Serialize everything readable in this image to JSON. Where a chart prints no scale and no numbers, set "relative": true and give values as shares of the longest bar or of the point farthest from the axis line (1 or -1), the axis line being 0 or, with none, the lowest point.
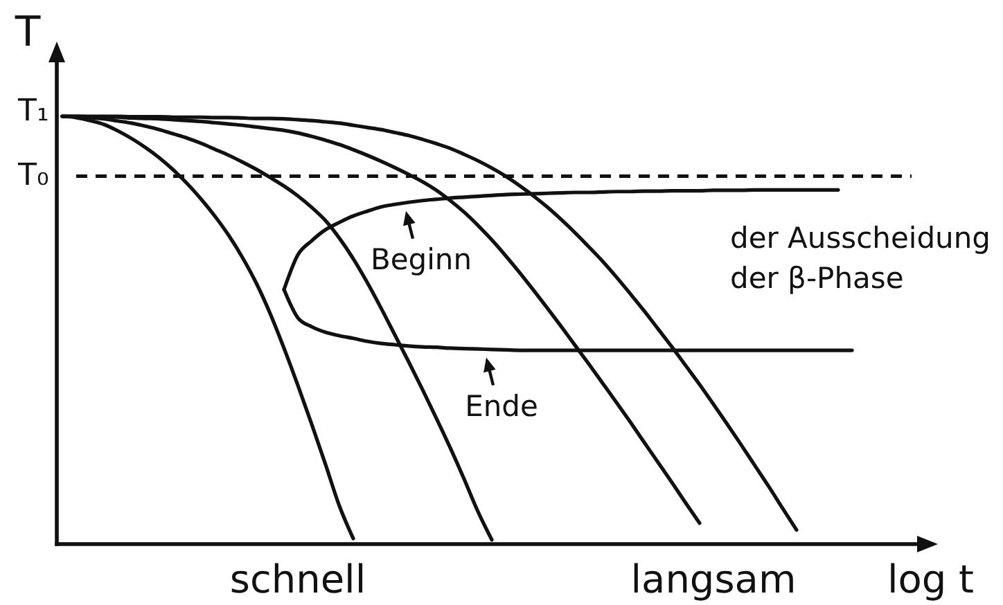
{
  "chart_data": {
    "type": "line",
    "relative": true,
    "xlabel": "log t",
    "ylabel": "T",
    "legend": "center",
    "categories": [
      null,
      null,
      null,
      null,
      null,
      null,
      null,
      null,
      null,
      null,
      null,
      null,
      null,
      null,
      null,
      null,
      null,
      "schnell",
      null,
      null,
      null,
      null,
      null,
      null,
      null,
      null,
      null,
      null,
      null,
      null,
      null,
      null,
      null,
      null,
      null,
      null,
      null,
      null,
      null,
      null,
      null,
      null,
      null,
      null,
      null,
      null,
      null,
      "langsam",
      null,
      null,
      null,
      null,
      null,
      null,
      null,
      null,
      null,
      null,
      null,
      null,
      null,
      null,
      null,
      null
    ],
    "series": [
      {
        "color": "#111111",
        "values": [
          1,
          0.997,
          0.99,
          0.981,
          0.966,
          0.948,
          0.927,
          0.903,
          0.875,
          0.843,
          0.807,
          0.767,
          0.722,
          0.67,
          0.61,
          0.539,
          0.458,
          0.371,
          0.28,
          0.186,
          0.089,
          0.013,
          null,
          null,
          null,
          null,
          null,
          null,
          null,
          null,
          null,
          null,
          null,
          null,
          null,
          null,
          null,
          null,
          null,
          null,
          null,
          null,
          null,
          null,
          null,
          null,
          null,
          null,
          null,
          null,
          null,
          null,
          null,
          null,
          null,
          null,
          null,
          null,
          null,
          null,
          null,
          null,
          null,
          null
        ]
      },
      {
        "color": "#111111",
        "values": [
          1,
          0.999,
          0.997,
          0.994,
          0.989,
          0.984,
          0.977,
          0.969,
          0.959,
          0.949,
          0.937,
          0.923,
          0.909,
          0.893,
          0.876,
          0.857,
          0.837,
          0.814,
          0.787,
          0.756,
          0.715,
          0.667,
          0.612,
          0.552,
          0.489,
          0.426,
          0.361,
          0.294,
          0.225,
          0.152,
          0.076,
          0.01,
          null,
          null,
          null,
          null,
          null,
          null,
          null,
          null,
          null,
          null,
          null,
          null,
          null,
          null,
          null,
          null,
          null,
          null,
          null,
          null,
          null,
          null,
          null,
          null,
          null,
          null,
          null,
          null,
          null,
          null,
          null,
          null
        ]
      },
      {
        "color": "#111111",
        "values": [
          1,
          1,
          0.999,
          0.999,
          0.998,
          0.996,
          0.995,
          0.994,
          0.992,
          0.99,
          0.988,
          0.985,
          0.982,
          0.979,
          0.975,
          0.971,
          0.967,
          0.961,
          0.953,
          0.944,
          0.934,
          0.922,
          0.909,
          0.895,
          0.88,
          0.864,
          0.847,
          0.827,
          0.803,
          0.776,
          0.745,
          0.711,
          0.674,
          0.635,
          0.594,
          0.552,
          0.509,
          0.465,
          0.421,
          0.376,
          0.331,
          0.285,
          0.238,
          0.191,
          0.144,
          0.096,
          0.049,
          null,
          null,
          null,
          null,
          null,
          null,
          null,
          null,
          null,
          null,
          null,
          null,
          null,
          null,
          null,
          null,
          null
        ]
      },
      {
        "color": "#111111",
        "values": [
          1,
          1,
          1,
          1,
          1,
          0.999,
          0.999,
          0.999,
          0.998,
          0.998,
          0.998,
          0.997,
          0.997,
          0.996,
          0.995,
          0.995,
          0.994,
          0.992,
          0.99,
          0.987,
          0.984,
          0.979,
          0.974,
          0.969,
          0.962,
          0.955,
          0.946,
          0.936,
          0.925,
          0.911,
          0.896,
          0.879,
          0.86,
          0.838,
          0.814,
          0.788,
          0.759,
          0.728,
          0.695,
          0.661,
          0.624,
          0.585,
          0.545,
          0.503,
          0.461,
          0.417,
          0.373,
          0.327,
          0.28,
          0.232,
          0.183,
          0.134,
          0.083,
          0.033,
          null,
          null,
          null,
          null,
          null,
          null,
          null,
          null,
          null,
          null
        ]
      },
      {
        "name": "Beginn",
        "color": "#111111",
        "values": [
          null,
          null,
          null,
          null,
          null,
          null,
          null,
          null,
          null,
          null,
          null,
          null,
          null,
          null,
          null,
          null,
          0.595,
          0.676,
          0.709,
          0.735,
          0.752,
          0.767,
          0.778,
          0.788,
          0.794,
          0.799,
          0.803,
          0.806,
          0.809,
          0.811,
          0.813,
          0.815,
          0.817,
          0.818,
          0.819,
          0.82,
          0.821,
          0.822,
          0.822,
          0.823,
          0.824,
          0.824,
          0.825,
          0.825,
          0.826,
          0.826,
          0.826,
          0.827,
          0.827,
          0.827,
          0.828,
          0.828,
          0.828,
          0.828,
          0.828,
          0.828,
          0.828,
          null,
          null,
          null,
          null,
          null,
          null,
          null
        ]
      },
      {
        "name": "Ende",
        "color": "#111111",
        "values": [
          null,
          null,
          null,
          null,
          null,
          null,
          null,
          null,
          null,
          null,
          null,
          null,
          null,
          null,
          null,
          null,
          0.595,
          0.529,
          0.508,
          0.495,
          0.487,
          0.481,
          0.474,
          0.469,
          0.466,
          0.463,
          0.461,
          0.46,
          0.458,
          0.457,
          0.456,
          0.455,
          0.454,
          0.453,
          0.453,
          0.453,
          0.453,
          0.453,
          0.453,
          0.453,
          0.453,
          0.453,
          0.453,
          0.453,
          0.453,
          0.453,
          0.453,
          0.453,
          0.453,
          0.453,
          0.453,
          0.453,
          0.453,
          0.453,
          0.453,
          0.453,
          0.453,
          0.453,
          null,
          null,
          null,
          null,
          null,
          null
        ]
      }
    ],
    "ref_lines": [
      {
        "axis": "y",
        "value": 0.86,
        "label": "T₀",
        "line_style": "dashed"
      }
    ],
    "annotations": [
      "T₁",
      "der Ausscheidung",
      "der β-Phase"
    ]
  }
}
